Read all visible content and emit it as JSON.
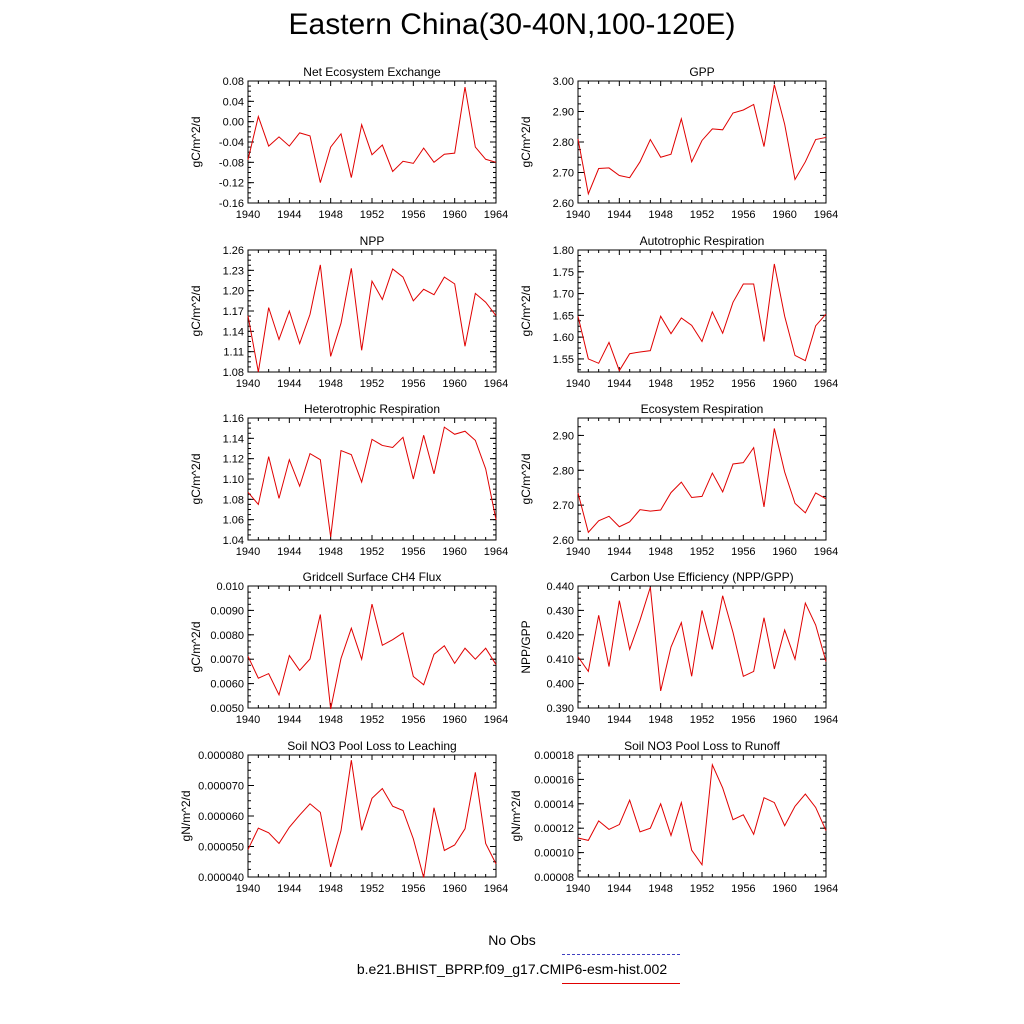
{
  "title": "Eastern China(30-40N,100-120E)",
  "legend": {
    "items": [
      {
        "label": "No Obs",
        "color": "#4040c0",
        "style": "dashed"
      },
      {
        "label": "b.e21.BHIST_BPRP.f09_g17.CMIP6-esm-hist.002",
        "color": "#e00000",
        "style": "solid"
      }
    ]
  },
  "chart_data": [
    {
      "type": "line",
      "title": "Net Ecosystem Exchange",
      "ylabel": "gC/m^2/d",
      "xlim": [
        1940,
        1964
      ],
      "ylim": [
        -0.16,
        0.08
      ],
      "xticks": [
        1940,
        1944,
        1948,
        1952,
        1956,
        1960,
        1964
      ],
      "xtick_labels": [
        "1940",
        "1944",
        "1948",
        "1952",
        "1956",
        "1960",
        "1964"
      ],
      "yticks": [
        -0.16,
        -0.12,
        -0.08,
        -0.04,
        0.0,
        0.04,
        0.08
      ],
      "ytick_labels": [
        "-0.16",
        "-0.12",
        "-0.08",
        "-0.04",
        "0.00",
        "0.04",
        "0.08"
      ],
      "series": [
        {
          "color": "#e00000",
          "x": [
            1940,
            1941,
            1942,
            1943,
            1944,
            1945,
            1946,
            1947,
            1948,
            1949,
            1950,
            1951,
            1952,
            1953,
            1954,
            1955,
            1956,
            1957,
            1958,
            1959,
            1960,
            1961,
            1962,
            1963,
            1964
          ],
          "y": [
            -0.075,
            0.01,
            -0.048,
            -0.03,
            -0.048,
            -0.022,
            -0.028,
            -0.12,
            -0.05,
            -0.024,
            -0.11,
            -0.006,
            -0.065,
            -0.046,
            -0.098,
            -0.078,
            -0.082,
            -0.052,
            -0.08,
            -0.064,
            -0.062,
            0.068,
            -0.05,
            -0.074,
            -0.08
          ]
        }
      ]
    },
    {
      "type": "line",
      "title": "GPP",
      "ylabel": "gC/m^2/d",
      "xlim": [
        1940,
        1964
      ],
      "ylim": [
        2.6,
        3.0
      ],
      "xticks": [
        1940,
        1944,
        1948,
        1952,
        1956,
        1960,
        1964
      ],
      "xtick_labels": [
        "1940",
        "1944",
        "1948",
        "1952",
        "1956",
        "1960",
        "1964"
      ],
      "yticks": [
        2.6,
        2.7,
        2.8,
        2.9,
        3.0
      ],
      "ytick_labels": [
        "2.60",
        "2.70",
        "2.80",
        "2.90",
        "3.00"
      ],
      "series": [
        {
          "color": "#e00000",
          "x": [
            1940,
            1941,
            1942,
            1943,
            1944,
            1945,
            1946,
            1947,
            1948,
            1949,
            1950,
            1951,
            1952,
            1953,
            1954,
            1955,
            1956,
            1957,
            1958,
            1959,
            1960,
            1961,
            1962,
            1963,
            1964
          ],
          "y": [
            2.81,
            2.63,
            2.713,
            2.715,
            2.69,
            2.683,
            2.735,
            2.808,
            2.75,
            2.76,
            2.876,
            2.735,
            2.805,
            2.843,
            2.84,
            2.895,
            2.905,
            2.923,
            2.785,
            2.988,
            2.858,
            2.677,
            2.735,
            2.808,
            2.815
          ]
        }
      ]
    },
    {
      "type": "line",
      "title": "NPP",
      "ylabel": "gC/m^2/d",
      "xlim": [
        1940,
        1964
      ],
      "ylim": [
        1.08,
        1.26
      ],
      "xticks": [
        1940,
        1944,
        1948,
        1952,
        1956,
        1960,
        1964
      ],
      "xtick_labels": [
        "1940",
        "1944",
        "1948",
        "1952",
        "1956",
        "1960",
        "1964"
      ],
      "yticks": [
        1.08,
        1.11,
        1.14,
        1.17,
        1.2,
        1.23,
        1.26
      ],
      "ytick_labels": [
        "1.08",
        "1.11",
        "1.14",
        "1.17",
        "1.20",
        "1.23",
        "1.26"
      ],
      "series": [
        {
          "color": "#e00000",
          "x": [
            1940,
            1941,
            1942,
            1943,
            1944,
            1945,
            1946,
            1947,
            1948,
            1949,
            1950,
            1951,
            1952,
            1953,
            1954,
            1955,
            1956,
            1957,
            1958,
            1959,
            1960,
            1961,
            1962,
            1963,
            1964
          ],
          "y": [
            1.163,
            1.08,
            1.175,
            1.128,
            1.17,
            1.122,
            1.165,
            1.238,
            1.103,
            1.152,
            1.233,
            1.112,
            1.214,
            1.187,
            1.232,
            1.22,
            1.185,
            1.202,
            1.194,
            1.22,
            1.21,
            1.118,
            1.196,
            1.183,
            1.163
          ]
        }
      ]
    },
    {
      "type": "line",
      "title": "Autotrophic Respiration",
      "ylabel": "gC/m^2/d",
      "xlim": [
        1940,
        1964
      ],
      "ylim": [
        1.52,
        1.8
      ],
      "xticks": [
        1940,
        1944,
        1948,
        1952,
        1956,
        1960,
        1964
      ],
      "xtick_labels": [
        "1940",
        "1944",
        "1948",
        "1952",
        "1956",
        "1960",
        "1964"
      ],
      "yticks": [
        1.55,
        1.6,
        1.65,
        1.7,
        1.75,
        1.8
      ],
      "ytick_labels": [
        "1.55",
        "1.60",
        "1.65",
        "1.70",
        "1.75",
        "1.80"
      ],
      "series": [
        {
          "color": "#e00000",
          "x": [
            1940,
            1941,
            1942,
            1943,
            1944,
            1945,
            1946,
            1947,
            1948,
            1949,
            1950,
            1951,
            1952,
            1953,
            1954,
            1955,
            1956,
            1957,
            1958,
            1959,
            1960,
            1961,
            1962,
            1963,
            1964
          ],
          "y": [
            1.648,
            1.55,
            1.54,
            1.588,
            1.523,
            1.562,
            1.566,
            1.569,
            1.648,
            1.608,
            1.644,
            1.627,
            1.59,
            1.658,
            1.609,
            1.68,
            1.722,
            1.722,
            1.59,
            1.768,
            1.648,
            1.558,
            1.546,
            1.626,
            1.653
          ]
        }
      ]
    },
    {
      "type": "line",
      "title": "Heterotrophic Respiration",
      "ylabel": "gC/m^2/d",
      "xlim": [
        1940,
        1964
      ],
      "ylim": [
        1.04,
        1.16
      ],
      "xticks": [
        1940,
        1944,
        1948,
        1952,
        1956,
        1960,
        1964
      ],
      "xtick_labels": [
        "1940",
        "1944",
        "1948",
        "1952",
        "1956",
        "1960",
        "1964"
      ],
      "yticks": [
        1.04,
        1.06,
        1.08,
        1.1,
        1.12,
        1.14,
        1.16
      ],
      "ytick_labels": [
        "1.04",
        "1.06",
        "1.08",
        "1.10",
        "1.12",
        "1.14",
        "1.16"
      ],
      "series": [
        {
          "color": "#e00000",
          "x": [
            1940,
            1941,
            1942,
            1943,
            1944,
            1945,
            1946,
            1947,
            1948,
            1949,
            1950,
            1951,
            1952,
            1953,
            1954,
            1955,
            1956,
            1957,
            1958,
            1959,
            1960,
            1961,
            1962,
            1963,
            1964
          ],
          "y": [
            1.087,
            1.075,
            1.122,
            1.081,
            1.119,
            1.093,
            1.125,
            1.119,
            1.043,
            1.128,
            1.124,
            1.097,
            1.139,
            1.133,
            1.131,
            1.141,
            1.1,
            1.143,
            1.105,
            1.151,
            1.144,
            1.147,
            1.138,
            1.11,
            1.06
          ]
        }
      ]
    },
    {
      "type": "line",
      "title": "Ecosystem Respiration",
      "ylabel": "gC/m^2/d",
      "xlim": [
        1940,
        1964
      ],
      "ylim": [
        2.6,
        2.95
      ],
      "xticks": [
        1940,
        1944,
        1948,
        1952,
        1956,
        1960,
        1964
      ],
      "xtick_labels": [
        "1940",
        "1944",
        "1948",
        "1952",
        "1956",
        "1960",
        "1964"
      ],
      "yticks": [
        2.6,
        2.7,
        2.8,
        2.9
      ],
      "ytick_labels": [
        "2.60",
        "2.70",
        "2.80",
        "2.90"
      ],
      "series": [
        {
          "color": "#e00000",
          "x": [
            1940,
            1941,
            1942,
            1943,
            1944,
            1945,
            1946,
            1947,
            1948,
            1949,
            1950,
            1951,
            1952,
            1953,
            1954,
            1955,
            1956,
            1957,
            1958,
            1959,
            1960,
            1961,
            1962,
            1963,
            1964
          ],
          "y": [
            2.735,
            2.622,
            2.655,
            2.668,
            2.638,
            2.652,
            2.687,
            2.683,
            2.686,
            2.736,
            2.766,
            2.722,
            2.725,
            2.792,
            2.738,
            2.818,
            2.822,
            2.865,
            2.695,
            2.92,
            2.795,
            2.705,
            2.678,
            2.735,
            2.718
          ]
        }
      ]
    },
    {
      "type": "line",
      "title": "Gridcell Surface CH4 Flux",
      "ylabel": "gC/m^2/d",
      "xlim": [
        1940,
        1964
      ],
      "ylim": [
        0.005,
        0.01
      ],
      "xticks": [
        1940,
        1944,
        1948,
        1952,
        1956,
        1960,
        1964
      ],
      "xtick_labels": [
        "1940",
        "1944",
        "1948",
        "1952",
        "1956",
        "1960",
        "1964"
      ],
      "yticks": [
        0.005,
        0.006,
        0.007,
        0.008,
        0.009,
        0.01
      ],
      "ytick_labels": [
        "0.0050",
        "0.0060",
        "0.0070",
        "0.0080",
        "0.0090",
        "0.010"
      ],
      "series": [
        {
          "color": "#e00000",
          "x": [
            1940,
            1941,
            1942,
            1943,
            1944,
            1945,
            1946,
            1947,
            1948,
            1949,
            1950,
            1951,
            1952,
            1953,
            1954,
            1955,
            1956,
            1957,
            1958,
            1959,
            1960,
            1961,
            1962,
            1963,
            1964
          ],
          "y": [
            0.00712,
            0.00622,
            0.00641,
            0.00554,
            0.00715,
            0.00654,
            0.00701,
            0.00883,
            0.00496,
            0.00703,
            0.00827,
            0.007,
            0.00926,
            0.00757,
            0.0078,
            0.00808,
            0.00629,
            0.00595,
            0.0072,
            0.00755,
            0.00683,
            0.00745,
            0.007,
            0.00745,
            0.00678
          ]
        }
      ]
    },
    {
      "type": "line",
      "title": "Carbon Use Efficiency (NPP/GPP)",
      "ylabel": "NPP/GPP",
      "xlim": [
        1940,
        1964
      ],
      "ylim": [
        0.39,
        0.44
      ],
      "xticks": [
        1940,
        1944,
        1948,
        1952,
        1956,
        1960,
        1964
      ],
      "xtick_labels": [
        "1940",
        "1944",
        "1948",
        "1952",
        "1956",
        "1960",
        "1964"
      ],
      "yticks": [
        0.39,
        0.4,
        0.41,
        0.42,
        0.43,
        0.44
      ],
      "ytick_labels": [
        "0.390",
        "0.400",
        "0.410",
        "0.420",
        "0.430",
        "0.440"
      ],
      "series": [
        {
          "color": "#e00000",
          "x": [
            1940,
            1941,
            1942,
            1943,
            1944,
            1945,
            1946,
            1947,
            1948,
            1949,
            1950,
            1951,
            1952,
            1953,
            1954,
            1955,
            1956,
            1957,
            1958,
            1959,
            1960,
            1961,
            1962,
            1963,
            1964
          ],
          "y": [
            0.411,
            0.405,
            0.428,
            0.407,
            0.434,
            0.414,
            0.426,
            0.4395,
            0.397,
            0.415,
            0.425,
            0.403,
            0.43,
            0.414,
            0.436,
            0.421,
            0.403,
            0.405,
            0.427,
            0.406,
            0.422,
            0.41,
            0.433,
            0.424,
            0.409
          ]
        }
      ]
    },
    {
      "type": "line",
      "title": "Soil NO3 Pool Loss to Leaching",
      "ylabel": "gN/m^2/d",
      "xlim": [
        1940,
        1964
      ],
      "ylim": [
        4e-05,
        8e-05
      ],
      "xticks": [
        1940,
        1944,
        1948,
        1952,
        1956,
        1960,
        1964
      ],
      "xtick_labels": [
        "1940",
        "1944",
        "1948",
        "1952",
        "1956",
        "1960",
        "1964"
      ],
      "yticks": [
        4e-05,
        5e-05,
        6e-05,
        7e-05,
        8e-05
      ],
      "ytick_labels": [
        "0.000040",
        "0.000050",
        "0.000060",
        "0.000070",
        "0.000080"
      ],
      "series": [
        {
          "color": "#e00000",
          "x": [
            1940,
            1941,
            1942,
            1943,
            1944,
            1945,
            1946,
            1947,
            1948,
            1949,
            1950,
            1951,
            1952,
            1953,
            1954,
            1955,
            1956,
            1957,
            1958,
            1959,
            1960,
            1961,
            1962,
            1963,
            1964
          ],
          "y": [
            4.9e-05,
            5.6e-05,
            5.45e-05,
            5.1e-05,
            5.63e-05,
            6.03e-05,
            6.4e-05,
            6.12e-05,
            4.33e-05,
            5.52e-05,
            7.83e-05,
            5.53e-05,
            6.58e-05,
            6.9e-05,
            6.32e-05,
            6.18e-05,
            5.25e-05,
            3.98e-05,
            6.27e-05,
            4.87e-05,
            5.05e-05,
            5.58e-05,
            7.43e-05,
            5.1e-05,
            4.43e-05
          ]
        }
      ]
    },
    {
      "type": "line",
      "title": "Soil NO3 Pool Loss to Runoff",
      "ylabel": "gN/m^2/d",
      "xlim": [
        1940,
        1964
      ],
      "ylim": [
        8e-05,
        0.00018
      ],
      "xticks": [
        1940,
        1944,
        1948,
        1952,
        1956,
        1960,
        1964
      ],
      "xtick_labels": [
        "1940",
        "1944",
        "1948",
        "1952",
        "1956",
        "1960",
        "1964"
      ],
      "yticks": [
        8e-05,
        0.0001,
        0.00012,
        0.00014,
        0.00016,
        0.00018
      ],
      "ytick_labels": [
        "0.00008",
        "0.00010",
        "0.00012",
        "0.00014",
        "0.00016",
        "0.00018"
      ],
      "series": [
        {
          "color": "#e00000",
          "x": [
            1940,
            1941,
            1942,
            1943,
            1944,
            1945,
            1946,
            1947,
            1948,
            1949,
            1950,
            1951,
            1952,
            1953,
            1954,
            1955,
            1956,
            1957,
            1958,
            1959,
            1960,
            1961,
            1962,
            1963,
            1964
          ],
          "y": [
            0.000112,
            0.00011,
            0.000126,
            0.000119,
            0.000123,
            0.000143,
            0.000117,
            0.00012,
            0.00014,
            0.000114,
            0.000141,
            0.000102,
            9e-05,
            0.000172,
            0.000153,
            0.000127,
            0.000131,
            0.000115,
            0.000145,
            0.000141,
            0.000122,
            0.000138,
            0.000148,
            0.000137,
            0.000118
          ]
        }
      ]
    }
  ]
}
